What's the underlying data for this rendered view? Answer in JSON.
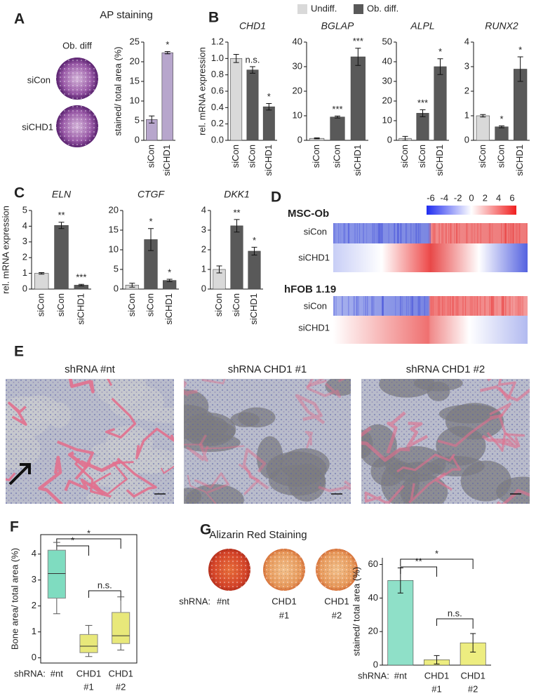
{
  "panel_labels": [
    "A",
    "B",
    "C",
    "D",
    "E",
    "F",
    "G"
  ],
  "panel_A": {
    "title": "AP staining",
    "image_header": "Ob. diff",
    "image_rows": [
      "siCon",
      "siCHD1"
    ]
  },
  "legend": [
    {
      "name": "Undiff.",
      "color": "#d9d9d9"
    },
    {
      "name": "Ob. diff.",
      "color": "#595959"
    }
  ],
  "panel_D": {
    "colorbar_ticks": [
      -6,
      -4,
      -2,
      0,
      2,
      4,
      6
    ],
    "heatmaps": [
      {
        "title": "MSC-Ob",
        "rows": [
          "siCon",
          "siCHD1"
        ]
      },
      {
        "title": "hFOB 1.19",
        "rows": [
          "siCon",
          "siCHD1"
        ]
      }
    ]
  },
  "panel_E": {
    "image_titles": [
      "shRNA #nt",
      "shRNA CHD1 #1",
      "shRNA CHD1 #2"
    ]
  },
  "panel_G": {
    "title": "Alizarin Red Staining"
  },
  "chart_data": [
    {
      "type": "bar",
      "categories": [
        "siCon",
        "siCHD1"
      ],
      "values": [
        5.3,
        22.3
      ],
      "errors": [
        0.9,
        0.3
      ],
      "significance": [
        null,
        "*"
      ],
      "color": "#b7a6cc",
      "ylim": [
        0,
        25
      ],
      "yticks": [
        0,
        5,
        10,
        15,
        20,
        25
      ],
      "ylabel": "stained/ total area (%)"
    },
    {
      "type": "bar",
      "title": "CHD1",
      "categories": [
        "siCon",
        "siCon",
        "siCHD1"
      ],
      "values": [
        1.0,
        0.86,
        0.41
      ],
      "errors": [
        0.05,
        0.04,
        0.04
      ],
      "significance": [
        null,
        "n.s.",
        "*"
      ],
      "bar_colors": [
        "#d9d9d9",
        "#595959",
        "#595959"
      ],
      "ylim": [
        0,
        1.2
      ],
      "yticks": [
        {
          "value": 0,
          "label": "0.0"
        },
        0.2,
        0.4,
        0.6,
        0.8,
        {
          "value": 1,
          "label": "1.0"
        },
        1.2
      ],
      "ylabel": "rel. mRNA expression"
    },
    {
      "type": "bar",
      "title": "BGLAP",
      "categories": [
        "siCon",
        "siCon",
        "siCHD1"
      ],
      "values": [
        0.8,
        9.5,
        34.0
      ],
      "errors": [
        0.2,
        0.4,
        3.5
      ],
      "significance": [
        null,
        "***",
        "***"
      ],
      "bar_colors": [
        "#d9d9d9",
        "#595959",
        "#595959"
      ],
      "ylim": [
        0,
        40
      ],
      "yticks": [
        0,
        10,
        20,
        30,
        40
      ]
    },
    {
      "type": "bar",
      "title": "ALPL",
      "categories": [
        "siCon",
        "siCon",
        "siCHD1"
      ],
      "values": [
        1.0,
        13.8,
        37.5
      ],
      "errors": [
        1.0,
        1.8,
        4.0
      ],
      "significance": [
        null,
        "***",
        "*"
      ],
      "bar_colors": [
        "#d9d9d9",
        "#595959",
        "#595959"
      ],
      "ylim": [
        0,
        50
      ],
      "yticks": [
        0,
        10,
        20,
        30,
        40,
        50
      ]
    },
    {
      "type": "bar",
      "title": "RUNX2",
      "categories": [
        "siCon",
        "siCon",
        "siCHD1"
      ],
      "values": [
        1.0,
        0.55,
        2.9
      ],
      "errors": [
        0.05,
        0.04,
        0.5
      ],
      "significance": [
        null,
        "*",
        "*"
      ],
      "bar_colors": [
        "#d9d9d9",
        "#595959",
        "#595959"
      ],
      "ylim": [
        0,
        4
      ],
      "yticks": [
        0,
        1,
        2,
        3,
        4
      ]
    },
    {
      "type": "bar",
      "title": "ELN",
      "categories": [
        "siCon",
        "siCon",
        "siCHD1"
      ],
      "values": [
        1.0,
        4.05,
        0.25
      ],
      "errors": [
        0.05,
        0.2,
        0.05
      ],
      "significance": [
        null,
        "**",
        "***"
      ],
      "bar_colors": [
        "#d9d9d9",
        "#595959",
        "#595959"
      ],
      "ylim": [
        0,
        5
      ],
      "yticks": [
        0,
        1,
        2,
        3,
        4,
        5
      ],
      "ylabel": "rel. mRNA expression"
    },
    {
      "type": "bar",
      "title": "CTGF",
      "categories": [
        "siCon",
        "siCon",
        "siCHD1"
      ],
      "values": [
        1.0,
        12.6,
        2.2
      ],
      "errors": [
        0.5,
        2.8,
        0.3
      ],
      "significance": [
        null,
        "*",
        "*"
      ],
      "bar_colors": [
        "#d9d9d9",
        "#595959",
        "#595959"
      ],
      "ylim": [
        0,
        20
      ],
      "yticks": [
        0,
        5,
        10,
        15,
        20
      ]
    },
    {
      "type": "bar",
      "title": "DKK1",
      "categories": [
        "siCon",
        "siCon",
        "siCHD1"
      ],
      "values": [
        1.0,
        3.22,
        1.93
      ],
      "errors": [
        0.18,
        0.32,
        0.2
      ],
      "significance": [
        null,
        "**",
        "*"
      ],
      "bar_colors": [
        "#d9d9d9",
        "#595959",
        "#595959"
      ],
      "ylim": [
        0,
        4
      ],
      "yticks": [
        0,
        1,
        2,
        3,
        4
      ]
    },
    {
      "type": "box",
      "xlabel": "shRNA:",
      "categories": [
        [
          "#nt"
        ],
        [
          "CHD1",
          "#1"
        ],
        [
          "CHD1",
          "#2"
        ]
      ],
      "boxes": [
        {
          "whisker_low": 1.7,
          "q1": 2.3,
          "median": 3.25,
          "q3": 4.15,
          "whisker_high": 4.45
        },
        {
          "whisker_low": 0.05,
          "q1": 0.2,
          "median": 0.45,
          "q3": 0.9,
          "whisker_high": 1.25
        },
        {
          "whisker_low": 0.3,
          "q1": 0.55,
          "median": 0.85,
          "q3": 1.75,
          "whisker_high": 2.35
        }
      ],
      "bar_colors": [
        "#7fdcc0",
        "#e8e87a",
        "#e8e87a"
      ],
      "ylim": [
        -0.2,
        4.75
      ],
      "yticks": [
        0,
        1,
        2,
        3,
        4
      ],
      "ylabel": "Bone area/ total area (%)",
      "comparisons": [
        "*",
        "*",
        "n.s."
      ]
    },
    {
      "type": "bar",
      "xlabel": "shRNA:",
      "categories": [
        [
          "#nt"
        ],
        [
          "CHD1",
          "#1"
        ],
        [
          "CHD1",
          "#2"
        ]
      ],
      "values": [
        50.5,
        3.2,
        13.3
      ],
      "errors": [
        7.5,
        2.5,
        5.5
      ],
      "bar_colors": [
        "#8fe0c8",
        "#eded80",
        "#eded80"
      ],
      "ylim": [
        0,
        64
      ],
      "yticks": [
        0,
        20,
        40,
        60
      ],
      "ylabel": "stained/ total area  (%)",
      "comparisons": [
        "**",
        "*",
        "n.s."
      ]
    }
  ]
}
